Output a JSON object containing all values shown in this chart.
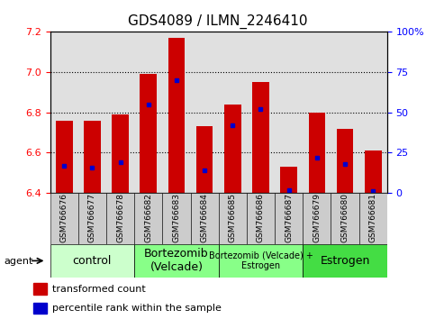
{
  "title": "GDS4089 / ILMN_2246410",
  "samples": [
    "GSM766676",
    "GSM766677",
    "GSM766678",
    "GSM766682",
    "GSM766683",
    "GSM766684",
    "GSM766685",
    "GSM766686",
    "GSM766687",
    "GSM766679",
    "GSM766680",
    "GSM766681"
  ],
  "transformed_counts": [
    6.76,
    6.76,
    6.79,
    6.99,
    7.17,
    6.73,
    6.84,
    6.95,
    6.53,
    6.8,
    6.72,
    6.61
  ],
  "percentile_ranks": [
    17,
    16,
    19,
    55,
    70,
    14,
    42,
    52,
    2,
    22,
    18,
    1
  ],
  "ymin": 6.4,
  "ymax": 7.2,
  "yticks": [
    6.4,
    6.6,
    6.8,
    7.0,
    7.2
  ],
  "right_yticks": [
    0,
    25,
    50,
    75,
    100
  ],
  "bar_color": "#cc0000",
  "percentile_color": "#0000cc",
  "bar_width": 0.6,
  "groups": [
    {
      "label": "control",
      "start": 0,
      "end": 3,
      "color": "#ccffcc",
      "fontsize": 9
    },
    {
      "label": "Bortezomib\n(Velcade)",
      "start": 3,
      "end": 6,
      "color": "#88ff88",
      "fontsize": 9
    },
    {
      "label": "Bortezomib (Velcade) +\nEstrogen",
      "start": 6,
      "end": 9,
      "color": "#88ff88",
      "fontsize": 7
    },
    {
      "label": "Estrogen",
      "start": 9,
      "end": 12,
      "color": "#44dd44",
      "fontsize": 9
    }
  ],
  "plot_bg": "#e0e0e0",
  "sample_cell_bg": "#d0d0d0",
  "title_fontsize": 11,
  "label_fontsize": 7,
  "grid_dotted_color": "#000000"
}
